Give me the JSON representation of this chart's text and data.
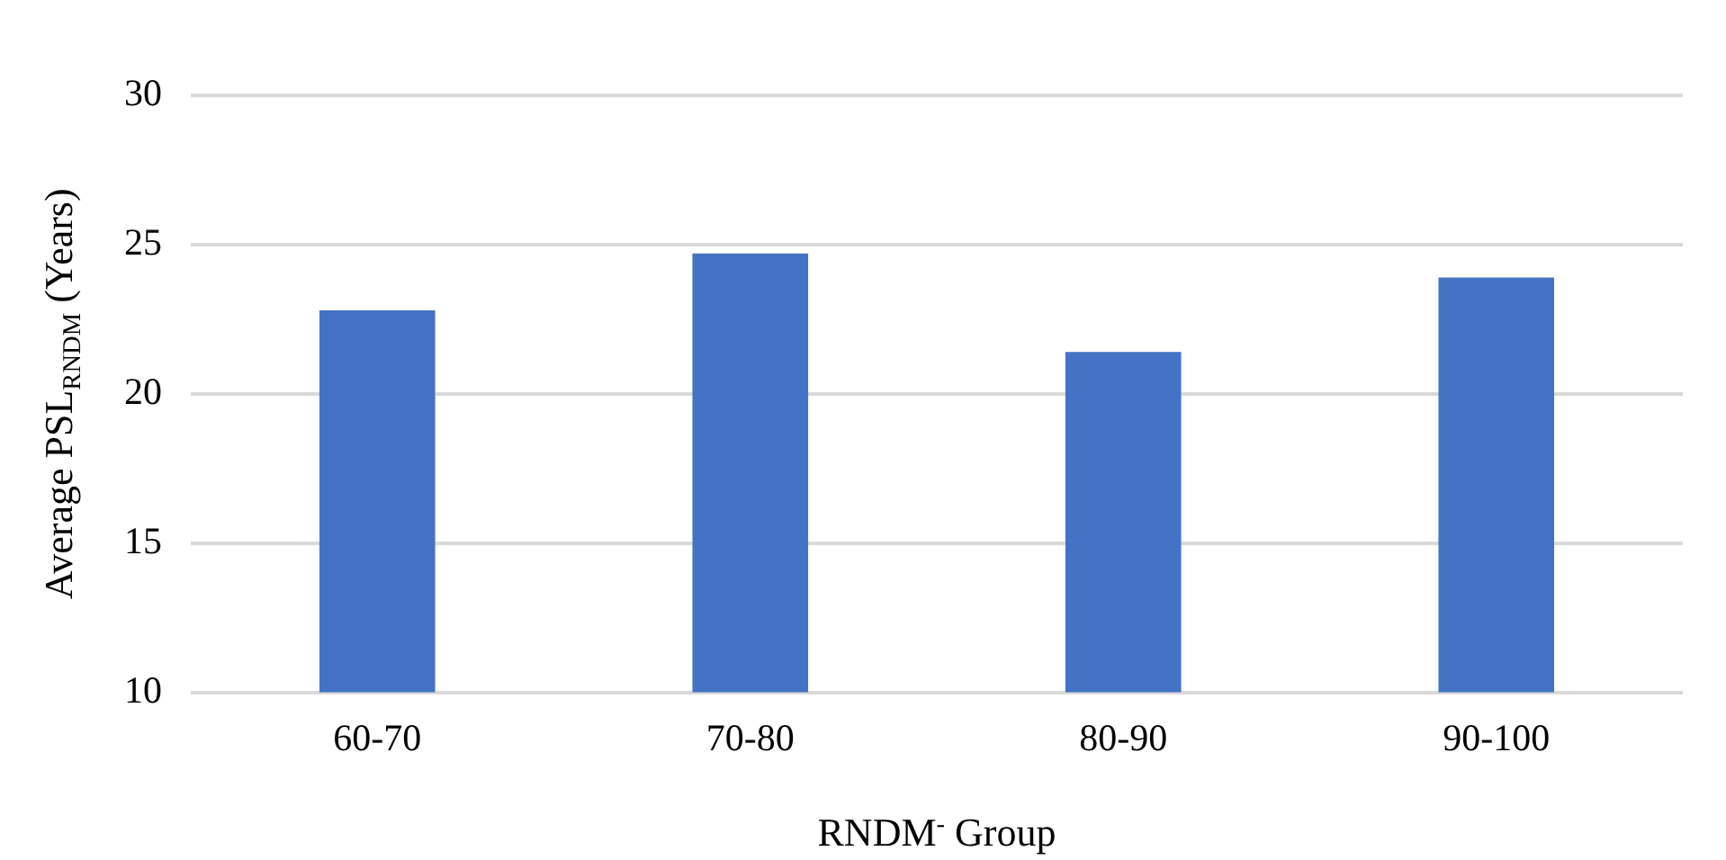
{
  "chart_data": {
    "type": "bar",
    "xlabel": "RNDM$^{-}$ Group",
    "ylabel": "Average PSL$_{RNDM}$ (Years)",
    "categories": [
      "60-70",
      "70-80",
      "80-90",
      "90-100"
    ],
    "values": [
      22.8,
      24.7,
      21.4,
      23.9
    ],
    "color": "#4472c4",
    "ylim": [
      10,
      30
    ],
    "yticks": [
      10,
      15,
      20,
      25,
      30
    ],
    "grid": "y"
  }
}
